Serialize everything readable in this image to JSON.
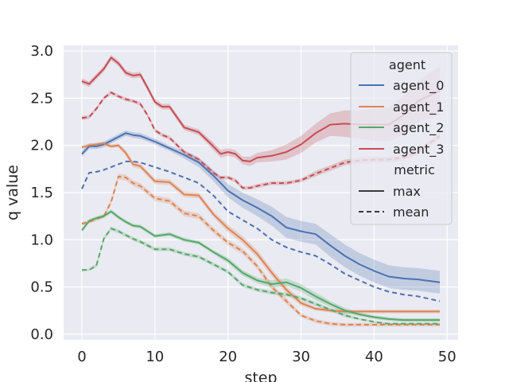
{
  "chart_data": {
    "type": "line",
    "title": "",
    "xlabel": "step",
    "ylabel": "q value",
    "xlim": [
      -2.5,
      51.5
    ],
    "ylim": [
      -0.06,
      3.06
    ],
    "xticks": [
      0,
      10,
      20,
      30,
      40,
      50
    ],
    "yticks": [
      0.0,
      0.5,
      1.0,
      1.5,
      2.0,
      2.5,
      3.0
    ],
    "xtick_labels": [
      "0",
      "10",
      "20",
      "30",
      "40",
      "50"
    ],
    "ytick_labels": [
      "0.0",
      "0.5",
      "1.0",
      "1.5",
      "2.0",
      "2.5",
      "3.0"
    ],
    "grid": true,
    "legend": {
      "placement": "top-right",
      "agent_title": "agent",
      "metric_title": "metric",
      "metric_entries": [
        "max",
        "mean"
      ]
    },
    "series": [
      {
        "agent": "agent_0",
        "color": "#4c72b0",
        "max": {
          "x": [
            0,
            1,
            2,
            3,
            4,
            5,
            6,
            7,
            8,
            10,
            12,
            14,
            16,
            18,
            20,
            22,
            24,
            26,
            28,
            30,
            32,
            34,
            36,
            38,
            40,
            42,
            44,
            46,
            49
          ],
          "y": [
            1.91,
            1.99,
            1.99,
            2.01,
            2.05,
            2.09,
            2.13,
            2.11,
            2.1,
            2.04,
            1.97,
            1.9,
            1.82,
            1.68,
            1.52,
            1.42,
            1.34,
            1.25,
            1.13,
            1.09,
            1.06,
            0.94,
            0.83,
            0.74,
            0.67,
            0.61,
            0.59,
            0.58,
            0.55
          ],
          "band": [
            0.03,
            0.03,
            0.03,
            0.03,
            0.03,
            0.03,
            0.03,
            0.03,
            0.03,
            0.03,
            0.03,
            0.04,
            0.05,
            0.06,
            0.07,
            0.08,
            0.09,
            0.1,
            0.11,
            0.11,
            0.11,
            0.12,
            0.12,
            0.12,
            0.12,
            0.12,
            0.12,
            0.12,
            0.12
          ]
        },
        "mean": {
          "x": [
            0,
            1,
            2,
            3,
            4,
            5,
            6,
            7,
            8,
            10,
            12,
            14,
            16,
            18,
            20,
            22,
            24,
            26,
            28,
            30,
            32,
            34,
            36,
            38,
            40,
            42,
            44,
            46,
            49
          ],
          "y": [
            1.54,
            1.71,
            1.72,
            1.74,
            1.77,
            1.8,
            1.83,
            1.83,
            1.82,
            1.77,
            1.72,
            1.66,
            1.6,
            1.47,
            1.3,
            1.21,
            1.12,
            1.0,
            0.92,
            0.87,
            0.83,
            0.74,
            0.64,
            0.57,
            0.5,
            0.45,
            0.42,
            0.4,
            0.35
          ]
        }
      },
      {
        "agent": "agent_1",
        "color": "#dd8452",
        "max": {
          "x": [
            0,
            1,
            2,
            3,
            4,
            5,
            6,
            7,
            8,
            10,
            12,
            14,
            16,
            18,
            20,
            22,
            24,
            26,
            28,
            30,
            32,
            34,
            36,
            38,
            40,
            42,
            44,
            46,
            49
          ],
          "y": [
            1.98,
            2.0,
            2.01,
            2.02,
            1.99,
            2.0,
            1.92,
            1.8,
            1.78,
            1.62,
            1.61,
            1.48,
            1.47,
            1.27,
            1.12,
            1.0,
            0.85,
            0.65,
            0.47,
            0.33,
            0.27,
            0.25,
            0.24,
            0.24,
            0.24,
            0.24,
            0.24,
            0.24,
            0.24
          ],
          "band": [
            0.02,
            0.02,
            0.02,
            0.02,
            0.02,
            0.02,
            0.03,
            0.03,
            0.03,
            0.03,
            0.03,
            0.03,
            0.03,
            0.03,
            0.04,
            0.04,
            0.04,
            0.04,
            0.04,
            0.03,
            0.02,
            0.02,
            0.02,
            0.02,
            0.02,
            0.02,
            0.02,
            0.02,
            0.02
          ]
        },
        "mean": {
          "x": [
            0,
            1,
            2,
            3,
            4,
            5,
            6,
            7,
            8,
            10,
            12,
            14,
            16,
            18,
            20,
            22,
            24,
            26,
            28,
            30,
            32,
            34,
            36,
            38,
            40,
            42,
            44,
            46,
            49
          ],
          "y": [
            1.17,
            1.19,
            1.22,
            1.25,
            1.4,
            1.67,
            1.66,
            1.6,
            1.57,
            1.44,
            1.41,
            1.28,
            1.25,
            1.1,
            0.97,
            0.88,
            0.72,
            0.5,
            0.35,
            0.2,
            0.14,
            0.11,
            0.1,
            0.1,
            0.1,
            0.1,
            0.1,
            0.1,
            0.1
          ],
          "band": [
            0.02,
            0.02,
            0.02,
            0.02,
            0.03,
            0.03,
            0.03,
            0.03,
            0.03,
            0.03,
            0.03,
            0.03,
            0.03,
            0.03,
            0.03,
            0.03,
            0.03,
            0.03,
            0.03,
            0.02,
            0.02,
            0.02,
            0.02,
            0.02,
            0.02,
            0.02,
            0.02,
            0.02,
            0.02
          ]
        }
      },
      {
        "agent": "agent_2",
        "color": "#55a868",
        "max": {
          "x": [
            0,
            1,
            2,
            3,
            4,
            5,
            6,
            7,
            8,
            10,
            12,
            14,
            16,
            18,
            20,
            22,
            24,
            26,
            28,
            30,
            32,
            34,
            36,
            38,
            40,
            42,
            44,
            46,
            49
          ],
          "y": [
            1.1,
            1.2,
            1.23,
            1.25,
            1.3,
            1.24,
            1.19,
            1.15,
            1.14,
            1.04,
            1.06,
            1.0,
            0.97,
            0.87,
            0.78,
            0.65,
            0.57,
            0.53,
            0.55,
            0.49,
            0.4,
            0.32,
            0.25,
            0.21,
            0.18,
            0.16,
            0.15,
            0.15,
            0.15
          ],
          "band": [
            0.02,
            0.02,
            0.02,
            0.02,
            0.02,
            0.02,
            0.02,
            0.02,
            0.02,
            0.02,
            0.02,
            0.02,
            0.02,
            0.02,
            0.03,
            0.03,
            0.03,
            0.04,
            0.04,
            0.04,
            0.04,
            0.03,
            0.03,
            0.02,
            0.02,
            0.02,
            0.02,
            0.02,
            0.02
          ]
        },
        "mean": {
          "x": [
            0,
            1,
            2,
            3,
            4,
            5,
            6,
            7,
            8,
            10,
            12,
            14,
            16,
            18,
            20,
            22,
            24,
            26,
            28,
            30,
            32,
            34,
            36,
            38,
            40,
            42,
            44,
            46,
            49
          ],
          "y": [
            0.68,
            0.68,
            0.73,
            1.01,
            1.12,
            1.09,
            1.05,
            1.01,
            0.98,
            0.9,
            0.9,
            0.85,
            0.82,
            0.74,
            0.66,
            0.52,
            0.47,
            0.44,
            0.42,
            0.38,
            0.32,
            0.26,
            0.2,
            0.16,
            0.13,
            0.11,
            0.11,
            0.11,
            0.11
          ],
          "band": [
            0.01,
            0.01,
            0.02,
            0.02,
            0.02,
            0.02,
            0.02,
            0.02,
            0.02,
            0.02,
            0.02,
            0.02,
            0.02,
            0.02,
            0.02,
            0.02,
            0.02,
            0.02,
            0.02,
            0.02,
            0.02,
            0.02,
            0.02,
            0.01,
            0.01,
            0.01,
            0.01,
            0.01,
            0.01
          ]
        }
      },
      {
        "agent": "agent_3",
        "color": "#c44e52",
        "max": {
          "x": [
            0,
            1,
            2,
            3,
            4,
            5,
            6,
            7,
            8,
            9,
            10,
            11,
            12,
            14,
            16,
            18,
            19,
            20,
            21,
            22,
            23,
            24,
            26,
            28,
            30,
            32,
            34,
            36,
            38,
            40,
            42,
            44,
            46,
            49
          ],
          "y": [
            2.68,
            2.65,
            2.73,
            2.81,
            2.93,
            2.87,
            2.77,
            2.74,
            2.75,
            2.61,
            2.46,
            2.41,
            2.41,
            2.19,
            2.14,
            1.99,
            1.91,
            1.93,
            1.91,
            1.84,
            1.83,
            1.87,
            1.89,
            1.93,
            2.01,
            2.13,
            2.22,
            2.23,
            2.22,
            2.22,
            2.22,
            2.32,
            2.47,
            2.58
          ],
          "band": [
            0.03,
            0.03,
            0.03,
            0.03,
            0.03,
            0.03,
            0.03,
            0.03,
            0.03,
            0.03,
            0.03,
            0.03,
            0.03,
            0.03,
            0.03,
            0.04,
            0.04,
            0.04,
            0.04,
            0.04,
            0.05,
            0.05,
            0.06,
            0.08,
            0.09,
            0.1,
            0.12,
            0.14,
            0.15,
            0.17,
            0.18,
            0.2,
            0.22,
            0.26
          ]
        },
        "mean": {
          "x": [
            0,
            1,
            2,
            3,
            4,
            5,
            6,
            7,
            8,
            9,
            10,
            11,
            12,
            14,
            16,
            18,
            19,
            20,
            21,
            22,
            23,
            24,
            26,
            28,
            30,
            32,
            34,
            36,
            38,
            40,
            42,
            44,
            46,
            49
          ],
          "y": [
            2.29,
            2.3,
            2.39,
            2.5,
            2.56,
            2.52,
            2.49,
            2.47,
            2.44,
            2.32,
            2.16,
            2.11,
            2.08,
            1.93,
            1.85,
            1.71,
            1.66,
            1.66,
            1.63,
            1.55,
            1.55,
            1.57,
            1.6,
            1.6,
            1.63,
            1.7,
            1.76,
            1.82,
            1.84,
            1.85,
            1.85,
            1.87,
            1.93,
            2.1
          ],
          "band": [
            0.02,
            0.02,
            0.02,
            0.02,
            0.02,
            0.02,
            0.02,
            0.02,
            0.02,
            0.02,
            0.02,
            0.02,
            0.02,
            0.02,
            0.02,
            0.02,
            0.02,
            0.02,
            0.02,
            0.02,
            0.02,
            0.02,
            0.02,
            0.02,
            0.02,
            0.03,
            0.03,
            0.03,
            0.03,
            0.03,
            0.03,
            0.03,
            0.03,
            0.03
          ]
        }
      }
    ]
  }
}
